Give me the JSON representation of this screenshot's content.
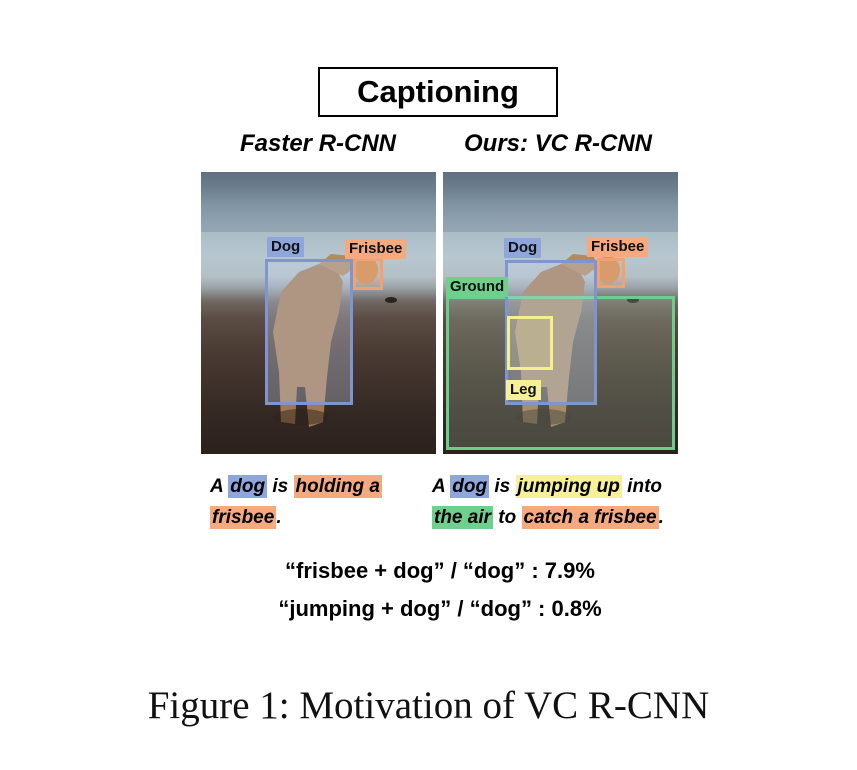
{
  "header": {
    "title": "Captioning"
  },
  "panels": [
    {
      "title": "Faster R-CNN",
      "boxes": [
        {
          "label": "Dog",
          "kind": "dog"
        },
        {
          "label": "Frisbee",
          "kind": "frisbee"
        }
      ],
      "caption": [
        {
          "text": "A ",
          "hl": null
        },
        {
          "text": "dog",
          "hl": "blue"
        },
        {
          "text": " is ",
          "hl": null
        },
        {
          "text": "holding a",
          "hl": "orange"
        },
        {
          "text": " ",
          "hl": null
        },
        {
          "text": "frisbee",
          "hl": "orange"
        },
        {
          "text": ".",
          "hl": null
        }
      ]
    },
    {
      "title": "Ours: VC R-CNN",
      "boxes": [
        {
          "label": "Dog",
          "kind": "dog"
        },
        {
          "label": "Frisbee",
          "kind": "frisbee"
        },
        {
          "label": "Ground",
          "kind": "ground"
        },
        {
          "label": "Leg",
          "kind": "leg"
        }
      ],
      "caption": [
        {
          "text": "A ",
          "hl": null
        },
        {
          "text": "dog",
          "hl": "blue"
        },
        {
          "text": " is ",
          "hl": null
        },
        {
          "text": "jumping up",
          "hl": "yellow"
        },
        {
          "text": " into ",
          "hl": null
        },
        {
          "text": "the air",
          "hl": "green"
        },
        {
          "text": " to ",
          "hl": null
        },
        {
          "text": "catch a frisbee",
          "hl": "orange"
        },
        {
          "text": ".",
          "hl": null
        }
      ]
    }
  ],
  "stats": [
    "“frisbee + dog” / “dog” : 7.9%",
    "“jumping + dog” / “dog” : 0.8%"
  ],
  "figure_caption": "Figure 1: Motivation of VC R-CNN",
  "colors": {
    "dog": "#8fa6dc",
    "frisbee": "#f5a97f",
    "ground": "#6fcf8d",
    "leg": "#f6f197"
  }
}
